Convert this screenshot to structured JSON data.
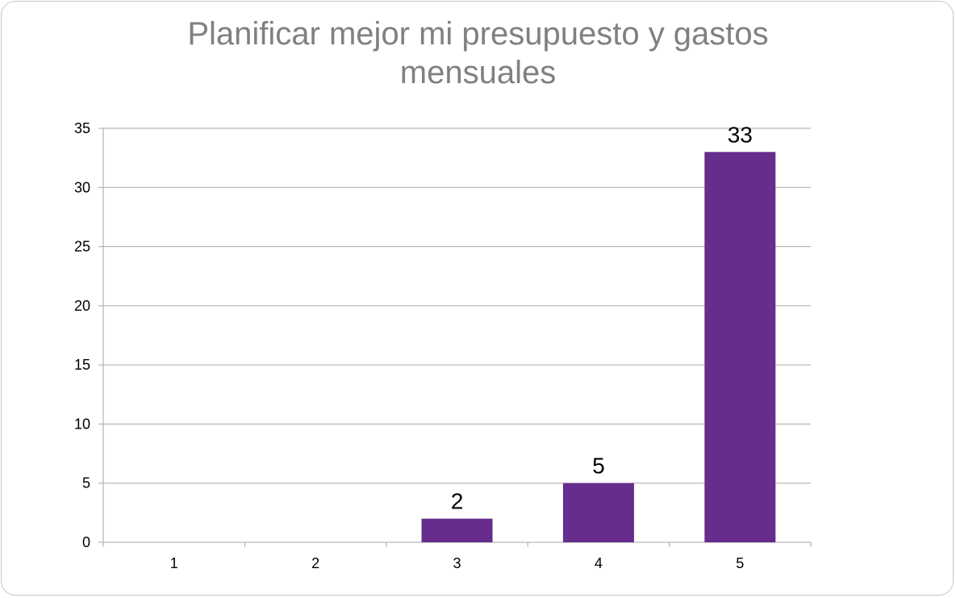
{
  "chart_data": {
    "type": "bar",
    "title_lines": [
      "Planificar mejor mi presupuesto y gastos",
      "mensuales"
    ],
    "categories": [
      "1",
      "2",
      "3",
      "4",
      "5"
    ],
    "values": [
      0,
      0,
      2,
      5,
      33
    ],
    "data_labels": [
      "",
      "",
      "2",
      "5",
      "33"
    ],
    "ylim": [
      0,
      35
    ],
    "yticks": [
      0,
      5,
      10,
      15,
      20,
      25,
      30,
      35
    ],
    "grid": true,
    "colors": {
      "bar": "#662d8c",
      "grid": "#a6a6a6",
      "title": "#808080"
    }
  }
}
